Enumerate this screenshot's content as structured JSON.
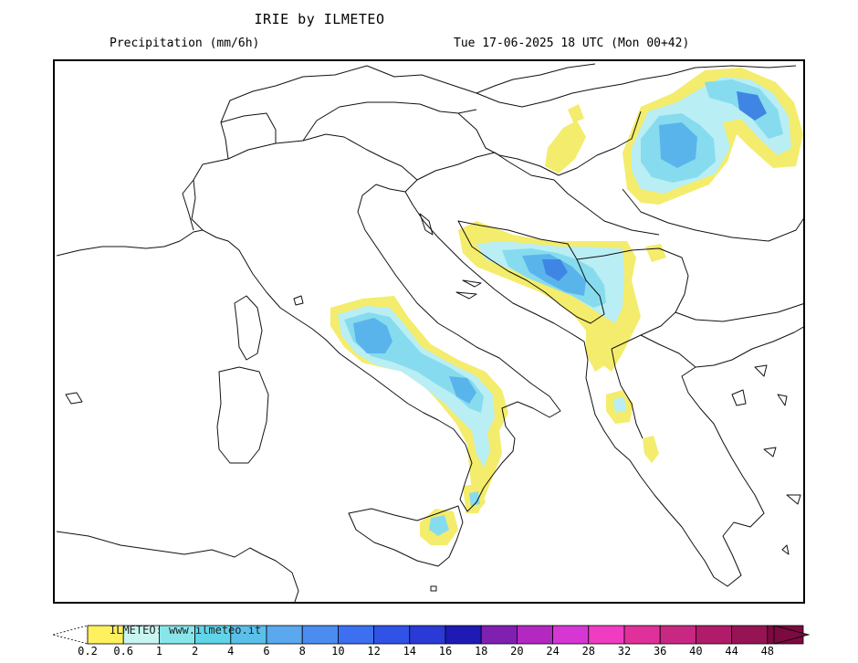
{
  "header": {
    "title": "IRIE by ILMETEO",
    "variable": "Precipitation (mm/6h)",
    "valid_time": "Tue 17-06-2025 18 UTC (Mon 00+42)"
  },
  "legend": {
    "watermark": "ILMETEO: www.ilmeteo.it",
    "ticks": [
      "0.2",
      "0.6",
      "1",
      "2",
      "4",
      "6",
      "8",
      "10",
      "12",
      "14",
      "16",
      "18",
      "20",
      "24",
      "28",
      "32",
      "36",
      "40",
      "44",
      "48"
    ],
    "colors": [
      "#fff060",
      "#c8f5f0",
      "#88e6ea",
      "#60d4e8",
      "#5ac0ea",
      "#5aa8ee",
      "#4a8cf0",
      "#3c70f0",
      "#3052e6",
      "#2a3ad6",
      "#1e1ab4",
      "#8020b0",
      "#b228c0",
      "#d636d4",
      "#f03cc0",
      "#e0309a",
      "#c82882",
      "#b01c6a",
      "#961454",
      "#7c0a40"
    ],
    "precip_colors": {
      "yellow": "#f4ec6c",
      "light_cyan": "#b9eef4",
      "cyan": "#86dcee",
      "blue": "#5ab4ec",
      "dark_blue": "#3f86e4"
    }
  }
}
